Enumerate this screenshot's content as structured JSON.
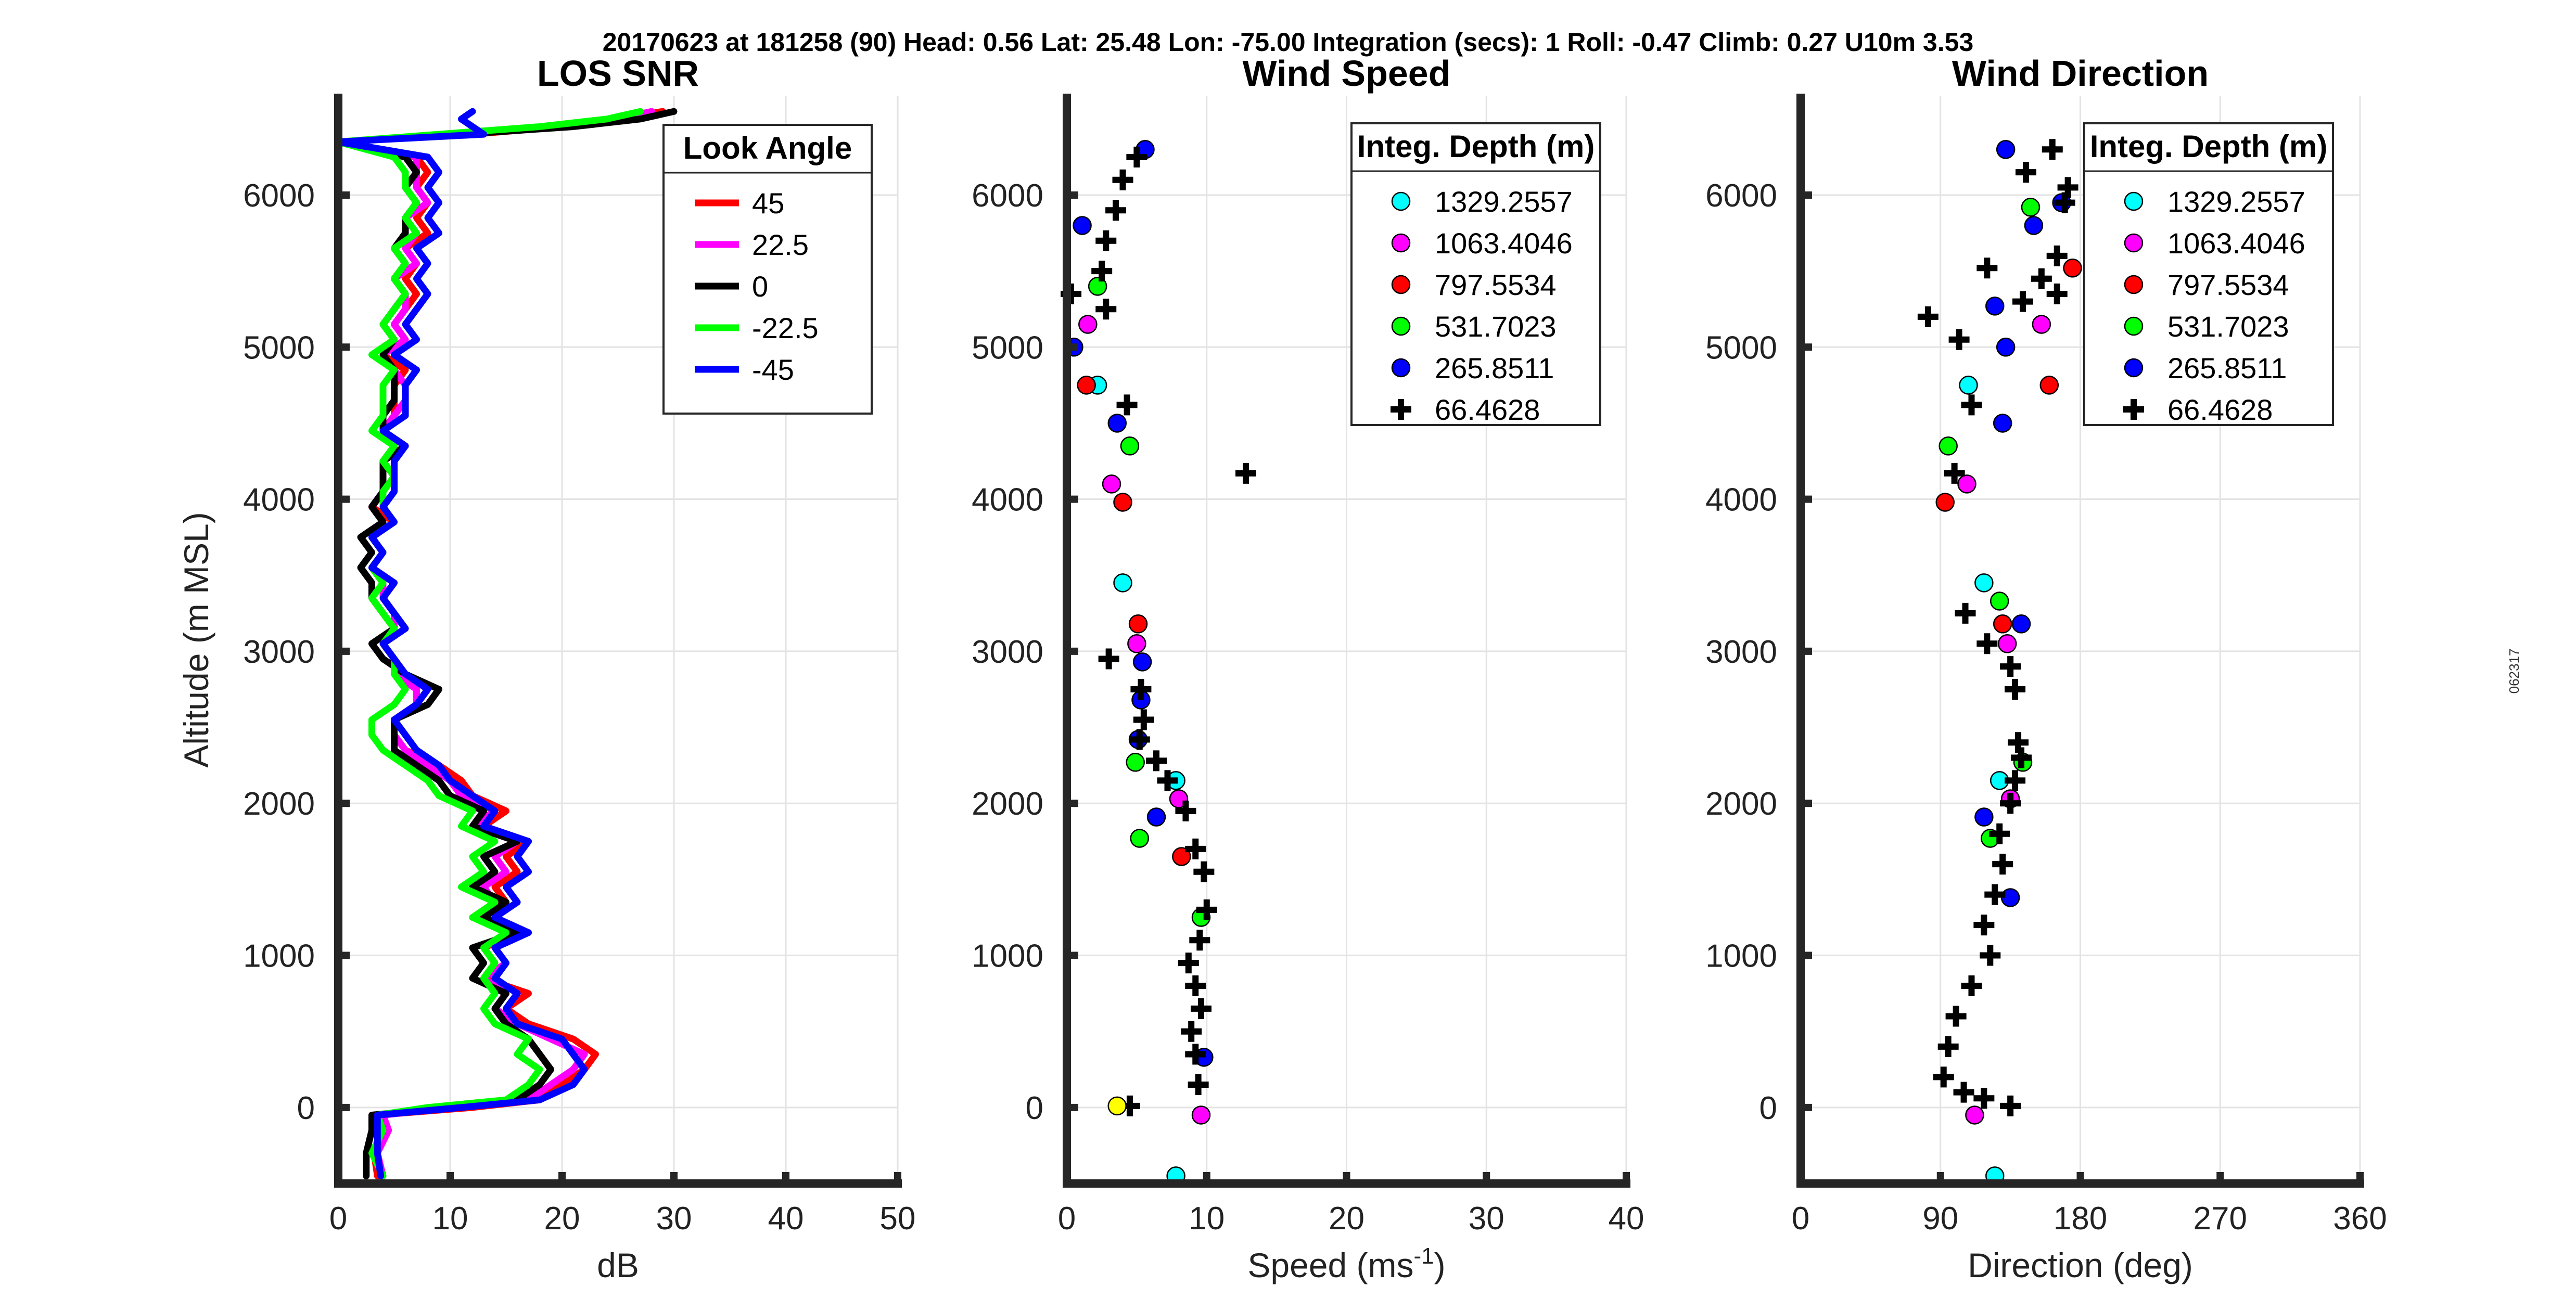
{
  "figure": {
    "suptitle": "20170623 at 181258 (90)  Head: 0.56  Lat: 25.48  Lon: -75.00  Integration (secs): 1  Roll: -0.47  Climb: 0.27  U10m 3.53",
    "stamp": "062317"
  },
  "chart_data": [
    {
      "type": "line",
      "title": "LOS SNR",
      "xlabel": "dB",
      "ylabel": "Altitude (m MSL)",
      "xlim": [
        0,
        50
      ],
      "ylim": [
        -500,
        6650
      ],
      "xticks": [
        "0",
        "10",
        "20",
        "30",
        "40",
        "50"
      ],
      "yticks": [
        "0",
        "1000",
        "2000",
        "3000",
        "4000",
        "5000",
        "6000"
      ],
      "legend": {
        "title": "Look Angle",
        "position": "top-right"
      },
      "y": [
        -450,
        -300,
        -150,
        -50,
        0,
        50,
        150,
        250,
        350,
        450,
        550,
        650,
        750,
        850,
        950,
        1050,
        1150,
        1250,
        1350,
        1450,
        1550,
        1650,
        1750,
        1850,
        1950,
        2050,
        2150,
        2250,
        2350,
        2450,
        2550,
        2650,
        2750,
        2850,
        2950,
        3050,
        3150,
        3250,
        3350,
        3450,
        3550,
        3650,
        3750,
        3850,
        3950,
        4050,
        4150,
        4250,
        4350,
        4450,
        4550,
        4650,
        4750,
        4850,
        4950,
        5050,
        5150,
        5250,
        5350,
        5450,
        5550,
        5650,
        5750,
        5850,
        5950,
        6050,
        6150,
        6250,
        6350,
        6400,
        6450,
        6500,
        6550
      ],
      "series": [
        {
          "name": "45",
          "color": "#ff0000",
          "values": [
            3.5,
            3.2,
            3.8,
            3.5,
            12,
            18,
            20,
            22,
            23,
            21,
            17,
            15,
            17,
            13,
            14,
            13,
            16,
            12,
            15,
            14,
            16,
            15,
            17,
            13,
            15,
            12,
            11,
            9,
            6,
            5,
            5,
            7,
            8,
            6,
            5,
            4,
            6,
            5,
            4,
            5,
            3,
            4,
            3,
            5,
            3,
            4,
            5,
            4,
            6,
            4,
            5,
            5,
            5,
            6,
            4,
            6,
            5,
            6,
            7,
            6,
            7,
            6,
            8,
            7,
            8,
            7,
            8,
            7,
            0,
            12,
            20,
            25,
            29
          ]
        },
        {
          "name": "22.5",
          "color": "#ff00ff",
          "values": [
            4,
            3.5,
            4.5,
            4,
            10,
            17,
            19,
            21,
            22,
            19,
            16,
            14,
            15,
            13,
            15,
            14,
            17,
            13,
            14,
            13,
            15,
            14,
            16,
            12,
            14,
            11,
            10,
            8,
            6,
            5,
            5,
            7,
            7,
            5,
            5,
            4,
            5,
            5,
            4,
            4,
            3,
            4,
            3,
            4,
            3,
            4,
            4,
            4,
            5,
            4,
            5,
            6,
            6,
            5,
            4,
            6,
            5,
            6,
            6,
            5,
            7,
            6,
            7,
            6,
            8,
            7,
            7,
            7,
            0,
            10,
            19,
            25,
            28
          ]
        },
        {
          "name": "0",
          "color": "#000000",
          "values": [
            2.5,
            2.5,
            3,
            3,
            10,
            16,
            18,
            19,
            18,
            17,
            15,
            14,
            15,
            12,
            13,
            12,
            16,
            13,
            15,
            12,
            14,
            13,
            16,
            12,
            13,
            10,
            9,
            7,
            5,
            5,
            5,
            8,
            9,
            6,
            4,
            3,
            5,
            4,
            3,
            3,
            2,
            3,
            2,
            4,
            3,
            4,
            4,
            4,
            6,
            4,
            4,
            5,
            5,
            5,
            4,
            5,
            4,
            5,
            6,
            5,
            6,
            5,
            6,
            6,
            7,
            6,
            7,
            6,
            0,
            11,
            21,
            27,
            30
          ]
        },
        {
          "name": "-22.5",
          "color": "#00ff00",
          "values": [
            4,
            3,
            4,
            3.5,
            8,
            15,
            17,
            18,
            16,
            17,
            14,
            13,
            14,
            13,
            14,
            13,
            15,
            12,
            14,
            11,
            13,
            12,
            14,
            11,
            12,
            9,
            8,
            6,
            4,
            3,
            3,
            5,
            6,
            5,
            5,
            4,
            5,
            4,
            3,
            4,
            3,
            4,
            3,
            5,
            4,
            4,
            5,
            4,
            5,
            3,
            4,
            4,
            4,
            5,
            3,
            5,
            4,
            5,
            6,
            5,
            6,
            5,
            7,
            6,
            7,
            6,
            6,
            5,
            0,
            9,
            18,
            24,
            27
          ]
        },
        {
          "name": "-45",
          "color": "#0000ff",
          "values": [
            3.8,
            3.5,
            3.5,
            3.5,
            11,
            18,
            21,
            22,
            21,
            20,
            16,
            15,
            16,
            14,
            15,
            14,
            17,
            14,
            16,
            15,
            17,
            16,
            17,
            13,
            14,
            12,
            10,
            9,
            7,
            6,
            5,
            7,
            8,
            6,
            5,
            4,
            6,
            5,
            4,
            5,
            3,
            4,
            3,
            5,
            4,
            5,
            5,
            5,
            6,
            4,
            6,
            6,
            6,
            7,
            5,
            7,
            6,
            7,
            8,
            7,
            8,
            7,
            9,
            8,
            9,
            8,
            9,
            8,
            0,
            13,
            12,
            11,
            12
          ]
        }
      ]
    },
    {
      "type": "scatter",
      "title": "Wind Speed",
      "xlabel": "Speed (ms",
      "xlabel_sup": "-1",
      "xlabel_end": ")",
      "xlim": [
        0,
        40
      ],
      "ylim": [
        -500,
        6650
      ],
      "xticks": [
        "0",
        "10",
        "20",
        "30",
        "40"
      ],
      "yticks": [
        "0",
        "1000",
        "2000",
        "3000",
        "4000",
        "5000",
        "6000"
      ],
      "legend": {
        "title": "Integ. Depth (m)",
        "position": "top-right"
      },
      "series": [
        {
          "name": "1329.2557",
          "color": "#00ffff",
          "x": [
            2.2,
            4.0,
            7.8,
            7.8
          ],
          "y": [
            4750,
            3450,
            2150,
            -450
          ]
        },
        {
          "name": "1063.4046",
          "color": "#ff00ff",
          "x": [
            1.5,
            3.2,
            5.0,
            8.0,
            9.6
          ],
          "y": [
            5150,
            4100,
            3050,
            2030,
            -50
          ]
        },
        {
          "name": "797.5534",
          "color": "#ff0000",
          "x": [
            1.4,
            4.0,
            5.1,
            8.2
          ],
          "y": [
            4750,
            3980,
            3180,
            1650
          ]
        },
        {
          "name": "531.7023",
          "color": "#00ff00",
          "x": [
            2.2,
            4.5,
            4.9,
            5.2,
            9.6
          ],
          "y": [
            5400,
            4350,
            2270,
            1770,
            1250
          ]
        },
        {
          "name": "265.8511",
          "color": "#0000ff",
          "x": [
            5.6,
            1.1,
            0.5,
            3.6,
            5.4,
            5.3,
            5.1,
            6.4,
            9.8
          ],
          "y": [
            6300,
            5800,
            5000,
            4500,
            2930,
            2680,
            2420,
            1910,
            330
          ]
        },
        {
          "name": "66.4628",
          "color": "#000000",
          "marker": "plus",
          "x": [
            5.0,
            4.0,
            3.5,
            2.8,
            2.5,
            2.8,
            0.3,
            4.3,
            12.8,
            3.0,
            5.3,
            5.5,
            5.2,
            6.4,
            7.2,
            8.5,
            9.2,
            9.8,
            10.0,
            9.5,
            8.7,
            9.2,
            9.6,
            8.9,
            9.2,
            9.4,
            4.5
          ],
          "y": [
            6250,
            6100,
            5900,
            5700,
            5500,
            5250,
            5350,
            4620,
            4170,
            2950,
            2750,
            2550,
            2420,
            2280,
            2150,
            1950,
            1700,
            1550,
            1300,
            1100,
            950,
            800,
            650,
            500,
            350,
            150,
            10
          ]
        },
        {
          "name": "",
          "color": "#ffff00",
          "show_in_legend": false,
          "x": [
            3.6
          ],
          "y": [
            10
          ]
        }
      ]
    },
    {
      "type": "scatter",
      "title": "Wind Direction",
      "xlabel": "Direction (deg)",
      "xlim": [
        0,
        360
      ],
      "ylim": [
        -500,
        6650
      ],
      "xticks": [
        "0",
        "90",
        "180",
        "270",
        "360"
      ],
      "yticks": [
        "0",
        "1000",
        "2000",
        "3000",
        "4000",
        "5000",
        "6000"
      ],
      "legend": {
        "title": "Integ. Depth (m)",
        "position": "top-right"
      },
      "series": [
        {
          "name": "1329.2557",
          "color": "#00ffff",
          "x": [
            108,
            118,
            128,
            125
          ],
          "y": [
            4750,
            3450,
            2150,
            -450
          ]
        },
        {
          "name": "1063.4046",
          "color": "#ff00ff",
          "x": [
            155,
            107,
            133,
            135,
            112
          ],
          "y": [
            5150,
            4100,
            3050,
            2030,
            -50
          ]
        },
        {
          "name": "797.5534",
          "color": "#ff0000",
          "x": [
            160,
            93,
            130,
            175
          ],
          "y": [
            4750,
            3980,
            3180,
            5520
          ]
        },
        {
          "name": "531.7023",
          "color": "#00ff00",
          "x": [
            148,
            95,
            128,
            143,
            122
          ],
          "y": [
            5920,
            4350,
            3330,
            2270,
            1770
          ]
        },
        {
          "name": "265.8511",
          "color": "#0000ff",
          "x": [
            132,
            125,
            150,
            132,
            168,
            130,
            142,
            118,
            135
          ],
          "y": [
            6300,
            5270,
            5800,
            5000,
            5950,
            4500,
            3180,
            1910,
            1380
          ]
        },
        {
          "name": "66.4628",
          "color": "#000000",
          "marker": "plus",
          "x": [
            162,
            145,
            172,
            170,
            165,
            155,
            143,
            120,
            165,
            82,
            102,
            110,
            99,
            106,
            120,
            135,
            138,
            140,
            142,
            138,
            135,
            128,
            130,
            125,
            118,
            122,
            110,
            100,
            95,
            92,
            105,
            118,
            135
          ],
          "y": [
            6300,
            6150,
            6050,
            5950,
            5600,
            5450,
            5300,
            5520,
            5350,
            5200,
            5050,
            4620,
            4170,
            3250,
            3050,
            2900,
            2750,
            2400,
            2300,
            2150,
            2000,
            1800,
            1600,
            1400,
            1200,
            1000,
            800,
            600,
            400,
            200,
            100,
            60,
            10
          ]
        }
      ]
    }
  ]
}
